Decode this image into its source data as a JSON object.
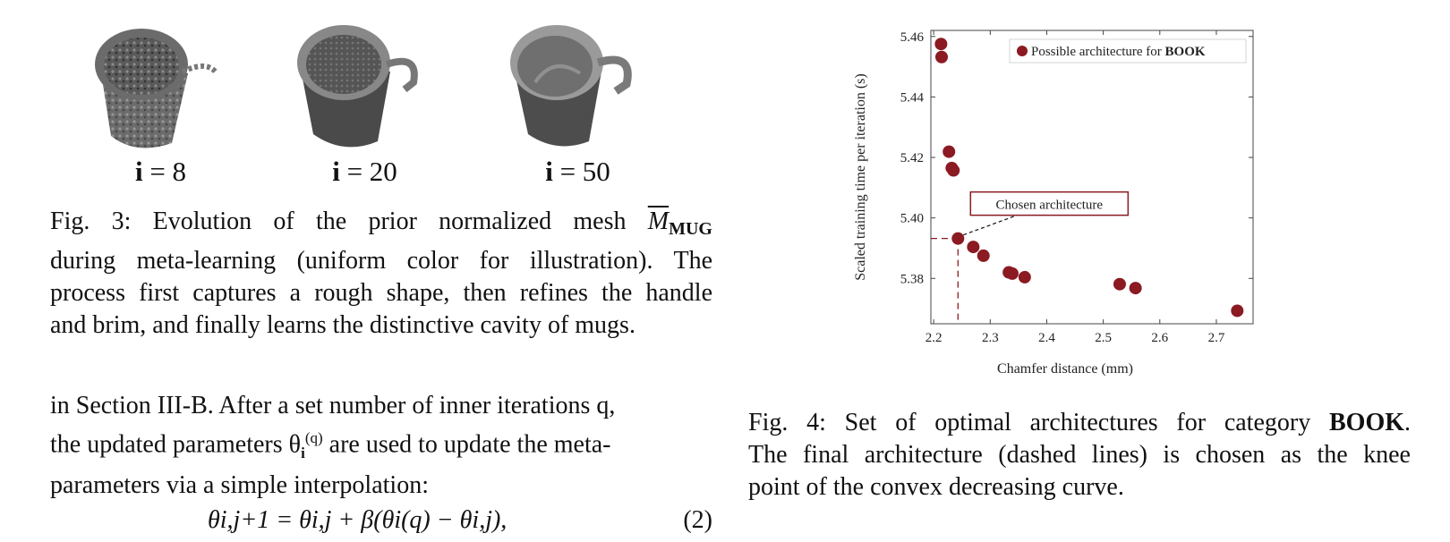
{
  "figure3": {
    "labels": [
      {
        "var": "i",
        "eq": " = 8"
      },
      {
        "var": "i",
        "eq": " = 20"
      },
      {
        "var": "i",
        "eq": " = 50"
      }
    ],
    "caption_lines": [
      "Fig. 3: Evolution of the prior normalized mesh ",
      "during meta-learning (uniform color for illustration). The",
      "process first captures a rough shape, then refines the handle",
      "and brim, and finally learns the distinctive cavity of mugs."
    ],
    "mesh_symbol": "M",
    "mesh_subscript": "MUG"
  },
  "body": {
    "line1": "in Section III-B. After a set number of inner iterations q,",
    "line2_a": "the updated parameters θ",
    "line2_sub": "i",
    "line2_sup": "(q)",
    "line2_b": " are used to update the meta-",
    "line3": "parameters via a simple interpolation:",
    "equation": "θi,j+1 = θi,j + β(θi(q) − θi,j),",
    "equation_number": "(2)"
  },
  "chart_data": {
    "type": "scatter",
    "xlabel": "Chamfer distance (mm)",
    "ylabel": "Scaled training time per iteration (s)",
    "xlim": [
      2.195,
      2.765
    ],
    "ylim": [
      5.365,
      5.462
    ],
    "xticks": [
      2.2,
      2.3,
      2.4,
      2.5,
      2.6,
      2.7
    ],
    "yticks": [
      5.38,
      5.4,
      5.42,
      5.44,
      5.46
    ],
    "grid": false,
    "legend_position": "top-right",
    "series": [
      {
        "name": "Possible architecture for BOOK",
        "color": "#8b1a22",
        "points": [
          [
            2.213,
            5.4575
          ],
          [
            2.214,
            5.4532
          ],
          [
            2.227,
            5.4219
          ],
          [
            2.232,
            5.4165
          ],
          [
            2.235,
            5.4157
          ],
          [
            2.243,
            5.3932
          ],
          [
            2.27,
            5.3904
          ],
          [
            2.288,
            5.3875
          ],
          [
            2.333,
            5.382
          ],
          [
            2.339,
            5.3816
          ],
          [
            2.361,
            5.3804
          ],
          [
            2.529,
            5.3781
          ],
          [
            2.557,
            5.3768
          ],
          [
            2.737,
            5.3693
          ]
        ]
      }
    ],
    "annotation": {
      "text": "Chosen architecture",
      "x": 2.243,
      "y": 5.3932
    }
  },
  "figure4": {
    "caption_lines": [
      "Fig. 4: Set of optimal architectures for category ",
      "The final architecture (dashed lines) is chosen as the knee",
      "point of the convex decreasing curve."
    ],
    "category": "BOOK"
  }
}
